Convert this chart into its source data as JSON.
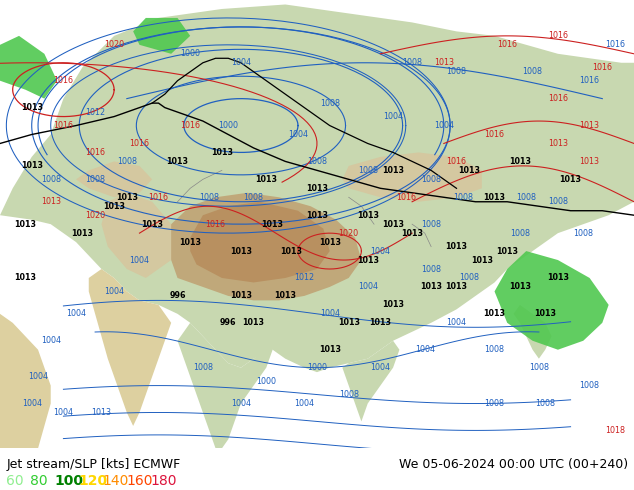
{
  "title_left": "Jet stream/SLP [kts] ECMWF",
  "title_right": "We 05-06-2024 00:00 UTC (00+240)",
  "legend_values": [
    "60",
    "80",
    "100",
    "120",
    "140",
    "160",
    "180"
  ],
  "legend_colors": [
    "#90ee90",
    "#32cd32",
    "#008000",
    "#ffd700",
    "#ff8c00",
    "#ff4500",
    "#dc143c"
  ],
  "fig_width": 6.34,
  "fig_height": 4.9,
  "dpi": 100,
  "bottom_bar_height": 0.085,
  "ocean_color": "#b8d4e8",
  "land_color_low": "#c8d8b0",
  "land_color_mid": "#d4c8a0",
  "land_color_high": "#c8b090",
  "land_color_tibet": "#c0a87a",
  "land_color_tibet_core": "#b89060",
  "land_color_arabia": "#ddd0a0",
  "green_jet": "#50c850",
  "contour_blue": "#2060c0",
  "contour_red": "#cc2020",
  "contour_black": "#000000",
  "contour_gray": "#888888"
}
